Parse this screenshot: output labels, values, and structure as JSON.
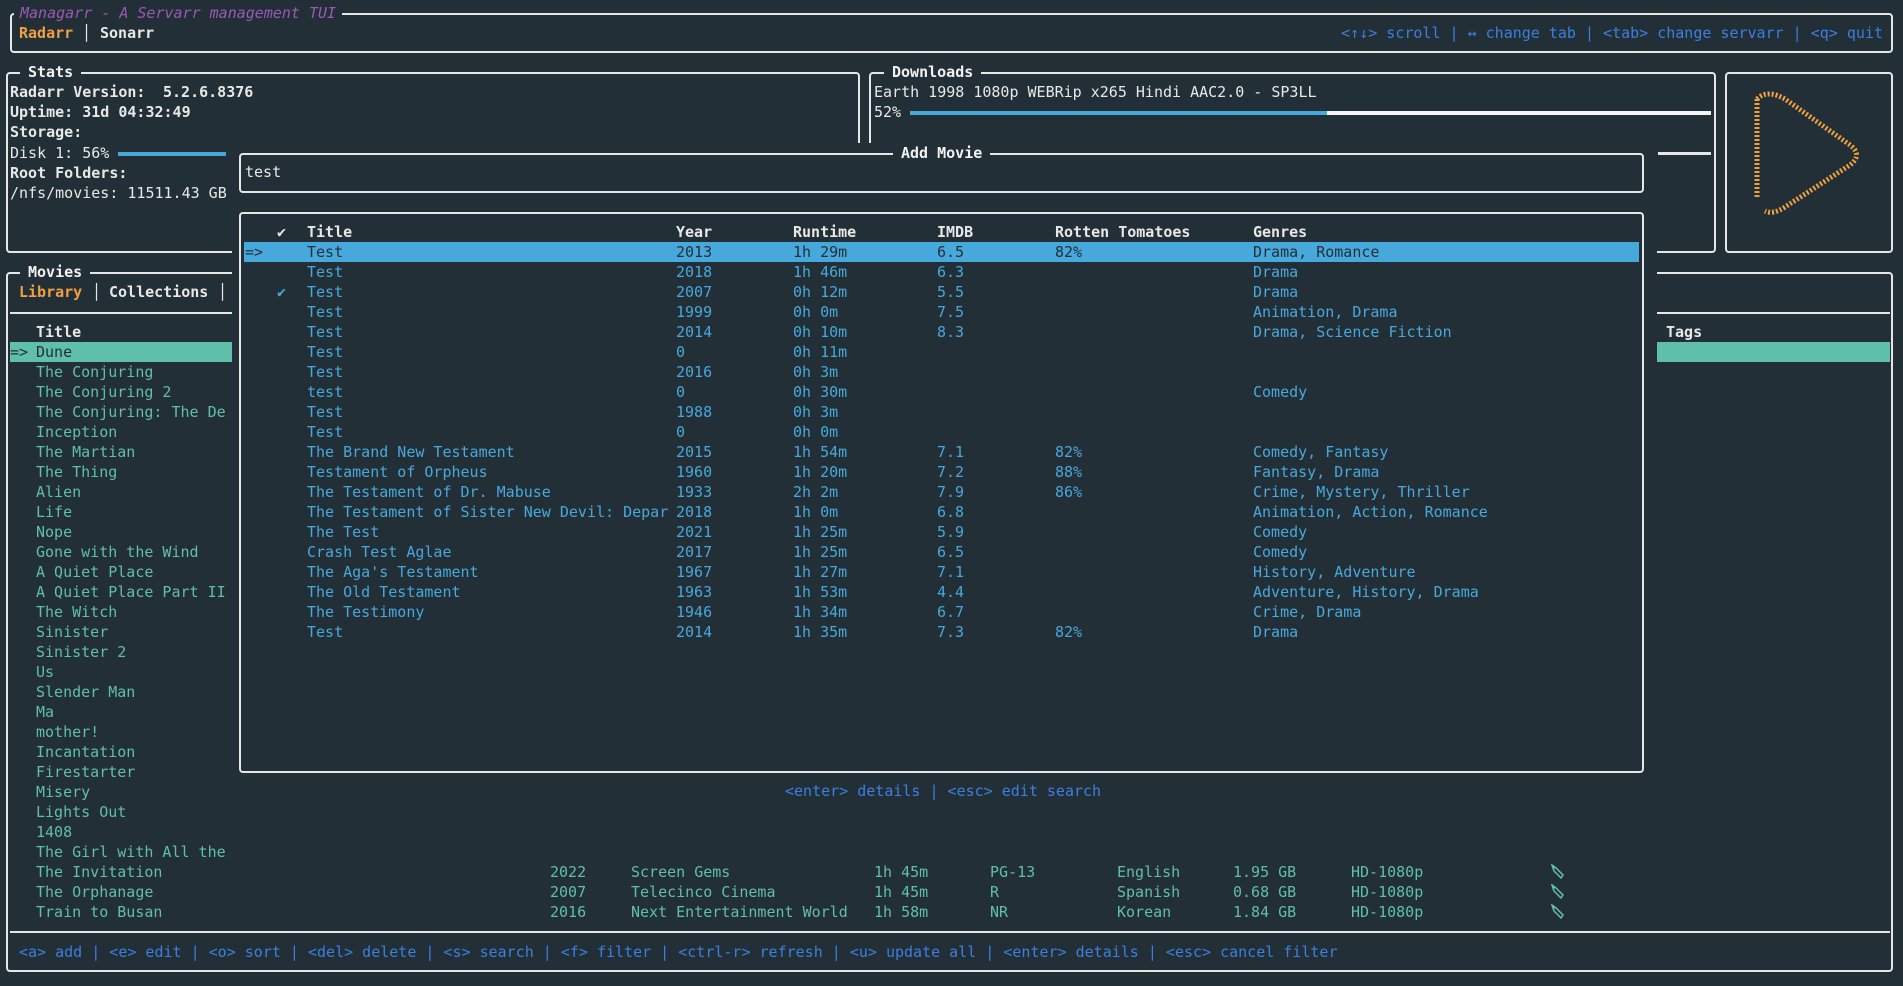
{
  "app": {
    "title": "Managarr - A Servarr management TUI",
    "servarr_tabs": [
      "Radarr",
      "Sonarr"
    ],
    "active_servarr": "Radarr",
    "help": "<↑↓> scroll | ↔ change tab | <tab> change servarr | <q> quit"
  },
  "stats": {
    "title": "Stats",
    "version_label": "Radarr Version:",
    "version": "5.2.6.8376",
    "uptime": "Uptime: 31d 04:32:49",
    "storage_label": "Storage:",
    "disk": "Disk 1: 56%",
    "disk_percent": 56,
    "root_label": "Root Folders:",
    "root": "/nfs/movies: 11511.43 GB"
  },
  "downloads": {
    "title": "Downloads",
    "item": "Earth 1998 1080p WEBRip x265 Hindi AAC2.0 - SP3LL",
    "percent_label": "52%",
    "percent": 52
  },
  "movies": {
    "title": "Movies",
    "tabs": [
      "Library",
      "Collections"
    ],
    "active_tab": "Library",
    "column_title": "Title",
    "column_tags": "Tags",
    "selector": "=>",
    "library": [
      "Dune",
      "The Conjuring",
      "The Conjuring 2",
      "The Conjuring: The De",
      "Inception",
      "The Martian",
      "The Thing",
      "Alien",
      "Life",
      "Nope",
      "Gone with the Wind",
      "A Quiet Place",
      "A Quiet Place Part II",
      "The Witch",
      "Sinister",
      "Sinister 2",
      "Us",
      "Slender Man",
      "Ma",
      "mother!",
      "Incantation",
      "Firestarter",
      "Misery",
      "Lights Out",
      "1408",
      "The Girl with All the",
      "The Invitation",
      "The Orphanage",
      "Train to Busan"
    ],
    "visible_details": [
      {
        "title": "The Invitation",
        "year": "2022",
        "studio": "Screen Gems",
        "runtime": "1h 45m",
        "rating": "PG-13",
        "language": "English",
        "size": "1.95 GB",
        "quality": "HD-1080p",
        "icon": "tag-icon"
      },
      {
        "title": "The Orphanage",
        "year": "2007",
        "studio": "Telecinco Cinema",
        "runtime": "1h 45m",
        "rating": "R",
        "language": "Spanish",
        "size": "0.68 GB",
        "quality": "HD-1080p",
        "icon": "tag-icon"
      },
      {
        "title": "Train to Busan",
        "year": "2016",
        "studio": "Next Entertainment World",
        "runtime": "1h 58m",
        "rating": "NR",
        "language": "Korean",
        "size": "1.84 GB",
        "quality": "HD-1080p",
        "icon": "tag-icon"
      }
    ],
    "help": "<a> add | <e> edit | <o> sort | <del> delete | <s> search | <f> filter | <ctrl-r> refresh | <u> update all | <enter> details | <esc> cancel filter"
  },
  "add_movie": {
    "title": "Add Movie",
    "search_value": "test",
    "selector": "=>",
    "check_glyph": "✔",
    "columns": [
      "✔",
      "Title",
      "Year",
      "Runtime",
      "IMDB",
      "Rotten Tomatoes",
      "Genres"
    ],
    "rows": [
      {
        "checked": false,
        "title": "Test",
        "year": "2013",
        "runtime": "1h 29m",
        "imdb": "6.5",
        "rt": "82%",
        "genres": "Drama, Romance"
      },
      {
        "checked": false,
        "title": "Test",
        "year": "2018",
        "runtime": "1h 46m",
        "imdb": "6.3",
        "rt": "",
        "genres": "Drama"
      },
      {
        "checked": true,
        "title": "Test",
        "year": "2007",
        "runtime": "0h 12m",
        "imdb": "5.5",
        "rt": "",
        "genres": "Drama"
      },
      {
        "checked": false,
        "title": "Test",
        "year": "1999",
        "runtime": "0h 0m",
        "imdb": "7.5",
        "rt": "",
        "genres": "Animation, Drama"
      },
      {
        "checked": false,
        "title": "Test",
        "year": "2014",
        "runtime": "0h 10m",
        "imdb": "8.3",
        "rt": "",
        "genres": "Drama, Science Fiction"
      },
      {
        "checked": false,
        "title": "Test",
        "year": "0",
        "runtime": "0h 11m",
        "imdb": "",
        "rt": "",
        "genres": ""
      },
      {
        "checked": false,
        "title": "Test",
        "year": "2016",
        "runtime": "0h 3m",
        "imdb": "",
        "rt": "",
        "genres": ""
      },
      {
        "checked": false,
        "title": "test",
        "year": "0",
        "runtime": "0h 30m",
        "imdb": "",
        "rt": "",
        "genres": "Comedy"
      },
      {
        "checked": false,
        "title": "Test",
        "year": "1988",
        "runtime": "0h 3m",
        "imdb": "",
        "rt": "",
        "genres": ""
      },
      {
        "checked": false,
        "title": "Test",
        "year": "0",
        "runtime": "0h 0m",
        "imdb": "",
        "rt": "",
        "genres": ""
      },
      {
        "checked": false,
        "title": "The Brand New Testament",
        "year": "2015",
        "runtime": "1h 54m",
        "imdb": "7.1",
        "rt": "82%",
        "genres": "Comedy, Fantasy"
      },
      {
        "checked": false,
        "title": "Testament of Orpheus",
        "year": "1960",
        "runtime": "1h 20m",
        "imdb": "7.2",
        "rt": "88%",
        "genres": "Fantasy, Drama"
      },
      {
        "checked": false,
        "title": "The Testament of Dr. Mabuse",
        "year": "1933",
        "runtime": "2h 2m",
        "imdb": "7.9",
        "rt": "86%",
        "genres": "Crime, Mystery, Thriller"
      },
      {
        "checked": false,
        "title": "The Testament of Sister New Devil: Depar",
        "year": "2018",
        "runtime": "1h 0m",
        "imdb": "6.8",
        "rt": "",
        "genres": "Animation, Action, Romance"
      },
      {
        "checked": false,
        "title": "The Test",
        "year": "2021",
        "runtime": "1h 25m",
        "imdb": "5.9",
        "rt": "",
        "genres": "Comedy"
      },
      {
        "checked": false,
        "title": "Crash Test Aglae",
        "year": "2017",
        "runtime": "1h 25m",
        "imdb": "6.5",
        "rt": "",
        "genres": "Comedy"
      },
      {
        "checked": false,
        "title": "The Aga's Testament",
        "year": "1967",
        "runtime": "1h 27m",
        "imdb": "7.1",
        "rt": "",
        "genres": "History, Adventure"
      },
      {
        "checked": false,
        "title": "The Old Testament",
        "year": "1963",
        "runtime": "1h 53m",
        "imdb": "4.4",
        "rt": "",
        "genres": "Adventure, History, Drama"
      },
      {
        "checked": false,
        "title": "The Testimony",
        "year": "1946",
        "runtime": "1h 34m",
        "imdb": "6.7",
        "rt": "",
        "genres": "Crime, Drama"
      },
      {
        "checked": false,
        "title": "Test",
        "year": "2014",
        "runtime": "1h 35m",
        "imdb": "7.3",
        "rt": "82%",
        "genres": "Drama"
      }
    ],
    "help": "<enter> details | <esc> edit search"
  },
  "colors": {
    "background": "#232f36",
    "accent_blue": "#47a8dc",
    "teal": "#5fbfaa",
    "orange": "#f0a040",
    "title_purple": "#9b59b6",
    "help_blue": "#3b7fe0"
  }
}
